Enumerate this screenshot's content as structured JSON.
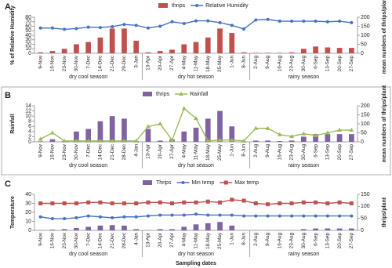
{
  "chart_data": [
    {
      "type": "bar",
      "title": "A",
      "categories": [
        "9-Nov",
        "16-Nov",
        "23-Nov",
        "30-Nov",
        "7-Dec",
        "14-Dec",
        "21-Dec",
        "29-Dec",
        "3-Jan",
        "13-Apr",
        "20-Apr",
        "27-Apr",
        "4-May",
        "11-May",
        "18-May",
        "25-May",
        "1-Jun",
        "8-Jun",
        "2-Aug",
        "9-Aug",
        "16-Aug",
        "23-Aug",
        "30-Aug",
        "6-Sep",
        "13-Sep",
        "20-Sep",
        "27-Sep"
      ],
      "seasons": [
        "dry cool season",
        "dry hot season",
        "rainy season"
      ],
      "ylabel": "% of Relative Humidity",
      "y2label": "mean numbers of thrips/plant",
      "ylim": [
        0,
        80
      ],
      "yticks": [
        0,
        10,
        20,
        30,
        40,
        50,
        60,
        70,
        80
      ],
      "y2lim": [
        0,
        200
      ],
      "y2ticks": [
        0,
        50,
        100,
        150,
        200
      ],
      "series": [
        {
          "name": "thrips",
          "color": "#c0504d",
          "values": [
            2,
            5,
            10,
            20,
            25,
            35,
            55,
            55,
            28,
            2,
            5,
            8,
            20,
            25,
            35,
            55,
            45,
            2,
            1,
            1,
            1,
            2,
            10,
            15,
            13,
            12,
            12
          ]
        },
        {
          "name": "Relative Humidity",
          "color": "#4472c4",
          "marker": "circle",
          "axis": "y2",
          "values": [
            140,
            140,
            133,
            137,
            145,
            143,
            148,
            160,
            155,
            140,
            150,
            175,
            165,
            180,
            180,
            170,
            155,
            135,
            185,
            188,
            178,
            178,
            178,
            178,
            175,
            178,
            170
          ]
        }
      ]
    },
    {
      "type": "bar",
      "title": "B",
      "categories": [
        "9-Nov",
        "16-Nov",
        "23-Nov",
        "30-Nov",
        "7-Dec",
        "14-Dec",
        "21-Dec",
        "28-Dec",
        "4-Jan",
        "13-Apr",
        "20-Apr",
        "27-Apr",
        "4-May",
        "11-May",
        "18-May",
        "25-May",
        "1-Jun",
        "8-Jun",
        "2-Aug",
        "9-Aug",
        "16-Aug",
        "23-Aug",
        "30-Aug",
        "6-Sep",
        "13-Sep",
        "20-Sep",
        "27-Sep"
      ],
      "seasons": [
        "dry cool season",
        "dry hot season",
        "rainy season"
      ],
      "ylabel": "Rainfall",
      "y2label": "mean numbers of thrips/plant",
      "ylim": [
        0,
        14
      ],
      "yticks": [
        0,
        2,
        4,
        6,
        8,
        10,
        12,
        14
      ],
      "y2lim": [
        0,
        200
      ],
      "y2ticks": [
        0,
        50,
        100,
        150,
        200
      ],
      "series": [
        {
          "name": "thrips",
          "color": "#8064a2",
          "values": [
            0.2,
            1,
            0.3,
            4,
            5,
            8,
            10,
            9,
            0.3,
            5,
            0.5,
            1,
            4,
            5.5,
            9,
            12,
            6,
            0.2,
            0.5,
            0.5,
            0.3,
            0.5,
            2,
            3,
            3,
            3,
            3
          ]
        },
        {
          "name": "Rainfall",
          "color": "#9bbb59",
          "marker": "triangle",
          "axis": "y2",
          "values": [
            15,
            50,
            5,
            5,
            5,
            5,
            5,
            5,
            5,
            85,
            100,
            10,
            185,
            130,
            5,
            10,
            10,
            5,
            75,
            75,
            40,
            30,
            45,
            35,
            50,
            65,
            65
          ]
        }
      ]
    },
    {
      "type": "bar",
      "title": "C",
      "categories": [
        "9-Nov",
        "16-Nov",
        "23-Nov",
        "30-Nov",
        "7-Dec",
        "14-Dec",
        "21-Dec",
        "28-Dec",
        "4-Jan",
        "13-Apr",
        "20-Apr",
        "27-Apr",
        "4-May",
        "11-May",
        "18-May",
        "25-May",
        "1-Jun",
        "8-Jun",
        "2-Aug",
        "9-Aug",
        "16-Aug",
        "23-Aug",
        "30-Aug",
        "6-Sep",
        "13-Sep",
        "20-Sep",
        "27-Sep"
      ],
      "seasons": [
        "dry cool season",
        "dry hot season",
        "rainy season"
      ],
      "xlabel": "Sampling dates",
      "ylabel": "Temperature",
      "y2label": "thrips/plant",
      "ylim": [
        0,
        40
      ],
      "yticks": [
        0,
        10,
        20,
        30,
        40
      ],
      "y2lim": [
        0,
        150
      ],
      "y2ticks": [
        0,
        50,
        100,
        150
      ],
      "series": [
        {
          "name": "Thrips",
          "color": "#8064a2",
          "axis": "y2",
          "values": [
            1,
            3,
            5,
            10,
            15,
            20,
            22,
            20,
            5,
            1,
            5,
            5,
            15,
            25,
            30,
            35,
            20,
            1,
            1,
            1,
            1,
            1,
            5,
            8,
            8,
            8,
            8
          ]
        },
        {
          "name": "Min temp",
          "color": "#4472c4",
          "marker": "circle",
          "values": [
            15,
            13,
            13,
            14,
            16,
            15,
            14,
            15,
            15,
            16,
            17,
            17,
            17,
            18,
            17,
            17,
            17,
            16,
            16,
            16,
            16,
            16,
            16,
            16,
            16,
            16,
            16
          ]
        },
        {
          "name": "Max temp",
          "color": "#c0504d",
          "marker": "square",
          "values": [
            30,
            30,
            30,
            30,
            31,
            31,
            30,
            30,
            30,
            31,
            31,
            30,
            31,
            31,
            32,
            31,
            34,
            33,
            30,
            29,
            30,
            30,
            31,
            31,
            30,
            31,
            30
          ]
        }
      ]
    }
  ]
}
